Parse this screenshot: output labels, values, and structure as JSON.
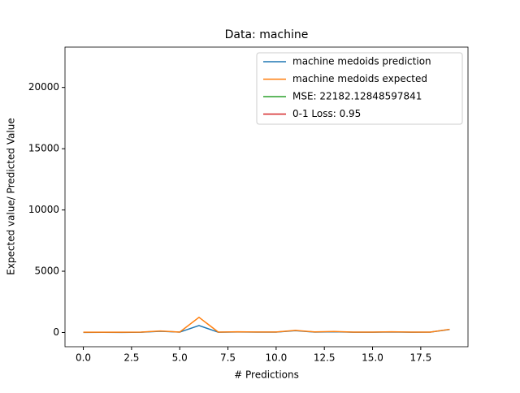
{
  "chart_data": {
    "type": "line",
    "title": "Data: machine",
    "xlabel": "# Predictions",
    "ylabel": "Expected value/ Predicted Value",
    "x": [
      0,
      1,
      2,
      3,
      4,
      5,
      6,
      7,
      8,
      9,
      10,
      11,
      12,
      13,
      14,
      15,
      16,
      17,
      18,
      19
    ],
    "series": [
      {
        "name": "machine medoids prediction",
        "color": "#1f77b4",
        "values": [
          10,
          15,
          10,
          20,
          100,
          30,
          570,
          20,
          40,
          30,
          30,
          150,
          30,
          60,
          20,
          20,
          40,
          20,
          30,
          250
        ]
      },
      {
        "name": "machine medoids expected",
        "color": "#ff7f0e",
        "values": [
          20,
          20,
          20,
          30,
          120,
          30,
          1240,
          30,
          60,
          40,
          40,
          170,
          50,
          80,
          30,
          30,
          60,
          30,
          30,
          260
        ]
      },
      {
        "name": "MSE: 22182.12848597841",
        "color": "#2ca02c",
        "x": [
          0
        ],
        "values": [
          22182.12848597841
        ]
      },
      {
        "name": "0-1 Loss: 0.95",
        "color": "#d62728",
        "x": [
          0
        ],
        "values": [
          0.95
        ]
      }
    ],
    "xlim": [
      -0.95,
      19.95
    ],
    "xticks": [
      {
        "value": 0,
        "label": "0.0"
      },
      2.5,
      {
        "value": 5,
        "label": "5.0"
      },
      7.5,
      {
        "value": 10,
        "label": "10.0"
      },
      12.5,
      {
        "value": 15,
        "label": "15.0"
      },
      17.5
    ],
    "ylim": [
      -1161,
      23293
    ],
    "yticks": [
      0,
      5000,
      10000,
      15000,
      20000
    ],
    "legend": "upper right"
  }
}
